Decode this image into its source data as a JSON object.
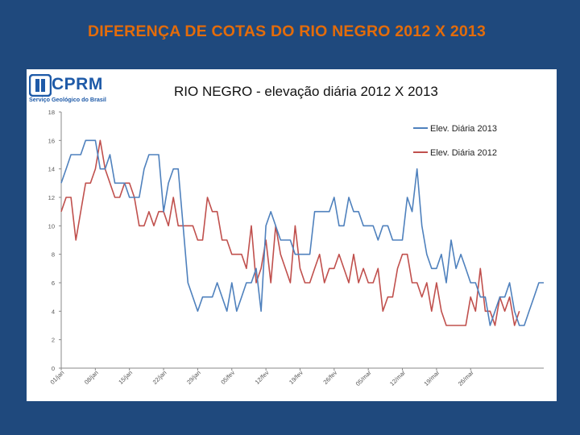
{
  "slide": {
    "title": "DIFERENÇA DE COTAS DO RIO NEGRO 2012 X 2013"
  },
  "logo": {
    "name": "CPRM",
    "subtitle": "Serviço Geológico do Brasil",
    "color": "#1e5aa8"
  },
  "chart_data": {
    "type": "line",
    "title": "RIO NEGRO - elevação diária 2012 X 2013",
    "ylim": [
      0,
      18
    ],
    "yticks": [
      0,
      2,
      4,
      6,
      8,
      10,
      12,
      14,
      16,
      18
    ],
    "xticks": [
      "01/jan",
      "08/jan",
      "15/jan",
      "22/jan",
      "29/jan",
      "05/fev",
      "12/fev",
      "19/fev",
      "26/fev",
      "05/mar",
      "12/mar",
      "19/mar",
      "26/mar"
    ],
    "xtick_positions": [
      0,
      7,
      14,
      21,
      28,
      35,
      42,
      49,
      56,
      63,
      70,
      77,
      84
    ],
    "grid": false,
    "legend_position": "top-right",
    "series": [
      {
        "name": "Elev. Diária 2013",
        "color": "#4f81bd",
        "values": [
          13,
          14,
          15,
          15,
          15,
          16,
          16,
          16,
          14,
          14,
          15,
          13,
          13,
          13,
          12,
          12,
          12,
          14,
          15,
          15,
          15,
          11,
          13,
          14,
          14,
          10,
          6,
          5,
          4,
          5,
          5,
          5,
          6,
          5,
          4,
          6,
          4,
          5,
          6,
          6,
          7,
          4,
          10,
          11,
          10,
          9,
          9,
          9,
          8,
          8,
          8,
          8,
          11,
          11,
          11,
          11,
          12,
          10,
          10,
          12,
          11,
          11,
          10,
          10,
          10,
          9,
          10,
          10,
          9,
          9,
          9,
          12,
          11,
          14,
          10,
          8,
          7,
          7,
          8,
          6,
          9,
          7,
          8,
          7,
          6,
          6,
          5,
          5,
          3,
          4,
          5,
          5,
          6,
          4,
          3,
          3,
          4,
          5,
          6,
          6
        ]
      },
      {
        "name": "Elev. Diária 2012",
        "color": "#c0504d",
        "values": [
          11,
          12,
          12,
          9,
          11,
          13,
          13,
          14,
          16,
          14,
          13,
          12,
          12,
          13,
          13,
          12,
          10,
          10,
          11,
          10,
          11,
          11,
          10,
          12,
          10,
          10,
          10,
          10,
          9,
          9,
          12,
          11,
          11,
          9,
          9,
          8,
          8,
          8,
          7,
          10,
          6,
          7,
          9,
          6,
          10,
          8,
          7,
          6,
          10,
          7,
          6,
          6,
          7,
          8,
          6,
          7,
          7,
          8,
          7,
          6,
          8,
          6,
          7,
          6,
          6,
          7,
          4,
          5,
          5,
          7,
          8,
          8,
          6,
          6,
          5,
          6,
          4,
          6,
          4,
          3,
          3,
          3,
          3,
          3,
          5,
          4,
          7,
          4,
          4,
          3,
          5,
          4,
          5,
          3,
          4
        ]
      }
    ]
  }
}
